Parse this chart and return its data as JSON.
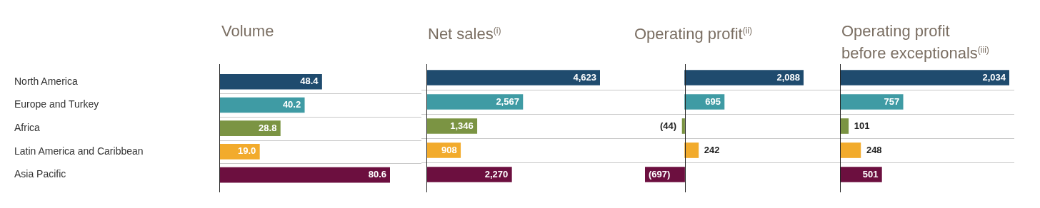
{
  "chart_data": [
    {
      "type": "bar",
      "orientation": "horizontal",
      "title": "Volume",
      "categories": [
        "North America",
        "Europe and Turkey",
        "Africa",
        "Latin America and Caribbean",
        "Asia Pacific"
      ],
      "values": [
        48.4,
        40.2,
        28.8,
        19.0,
        80.6
      ],
      "value_labels": [
        "48.4",
        "40.2",
        "28.8",
        "19.0",
        "80.6"
      ],
      "colors": [
        "#1f4b6e",
        "#3f9ba4",
        "#7b9443",
        "#f2ab2c",
        "#6c0f3f"
      ],
      "grid": "y",
      "tick_labels": "y"
    },
    {
      "type": "bar",
      "orientation": "horizontal",
      "title": "Net sales$^{(i)}$",
      "categories": [
        null,
        null,
        null,
        null,
        null
      ],
      "values": [
        4623,
        2567,
        1346,
        908,
        2270
      ],
      "value_labels": [
        "4,623",
        "2,567",
        "1,346",
        "908",
        "2,270"
      ],
      "colors": [
        "#1f4b6e",
        "#3f9ba4",
        "#7b9443",
        "#f2ab2c",
        "#6c0f3f"
      ],
      "grid": "y",
      "tick_labels": false
    },
    {
      "type": "bar",
      "orientation": "horizontal",
      "title": "Operating profit$^{(ii)}$",
      "categories": [
        null,
        null,
        null,
        null,
        null
      ],
      "values": [
        2088,
        695,
        -44,
        242,
        -697
      ],
      "value_labels": [
        "2,088",
        "695",
        "(44)",
        "242",
        "(697)"
      ],
      "colors": [
        "#1f4b6e",
        "#3f9ba4",
        "#7b9443",
        "#f2ab2c",
        "#6c0f3f"
      ],
      "grid": "y",
      "tick_labels": false
    },
    {
      "type": "bar",
      "orientation": "horizontal",
      "title": "Operating profit\nbefore exceptionals$^{(iii)}$",
      "categories": [
        null,
        null,
        null,
        null,
        null
      ],
      "values": [
        2034,
        757,
        101,
        248,
        501
      ],
      "value_labels": [
        "2,034",
        "757",
        "101",
        "248",
        "501"
      ],
      "colors": [
        "#1f4b6e",
        "#3f9ba4",
        "#7b9443",
        "#f2ab2c",
        "#6c0f3f"
      ],
      "grid": "y",
      "tick_labels": false
    }
  ]
}
